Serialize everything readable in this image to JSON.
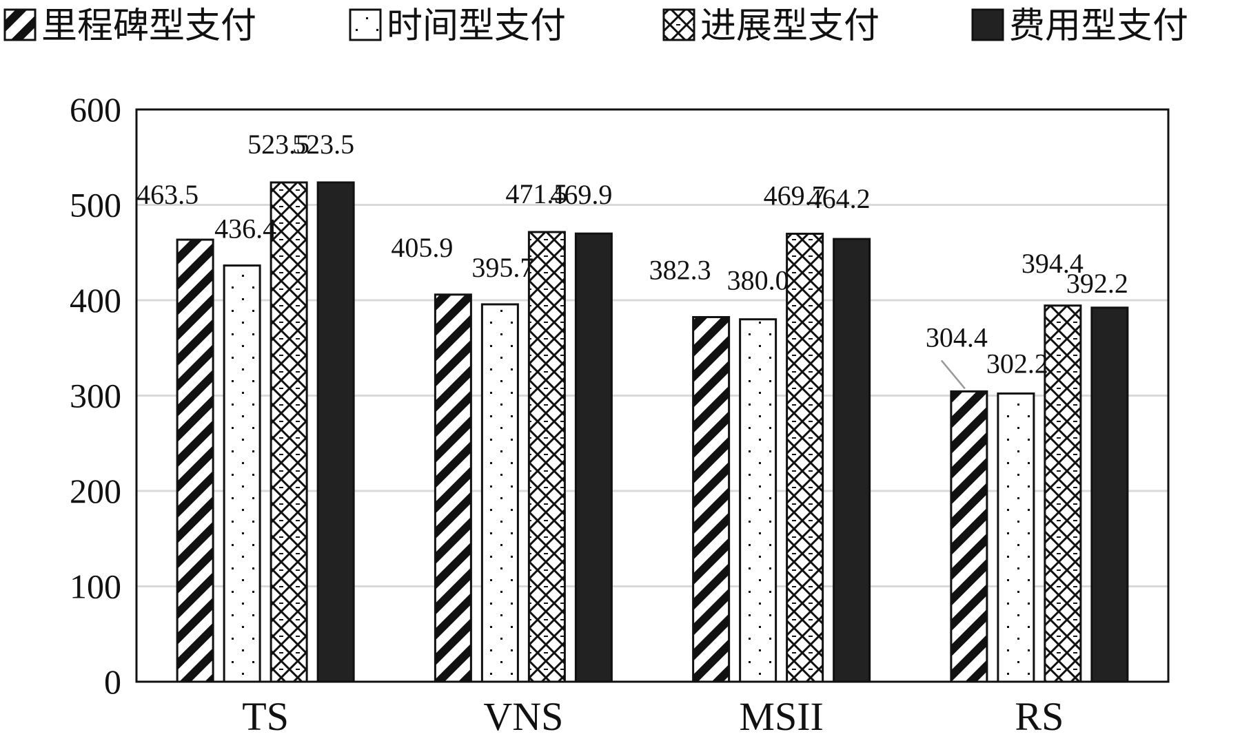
{
  "chart_data": {
    "type": "bar",
    "categories": [
      "TS",
      "VNS",
      "MSII",
      "RS"
    ],
    "series": [
      {
        "name": "里程碑型支付",
        "values": [
          463.5,
          405.9,
          382.3,
          304.4
        ],
        "pattern": "diagonal-stripes"
      },
      {
        "name": "时间型支付",
        "values": [
          436.4,
          395.7,
          380.0,
          302.2
        ],
        "pattern": "dots"
      },
      {
        "name": "进展型支付",
        "values": [
          523.5,
          471.5,
          469.7,
          394.4
        ],
        "pattern": "crosshatch"
      },
      {
        "name": "费用型支付",
        "values": [
          523.5,
          469.9,
          464.2,
          392.2
        ],
        "pattern": "solid"
      }
    ],
    "data_labels": [
      [
        "463.5",
        "405.9",
        "382.3",
        "304.4"
      ],
      [
        "436.4",
        "395.7",
        "380.0",
        "302.2"
      ],
      [
        "523.5",
        "471.5",
        "469.7",
        "394.4"
      ],
      [
        "523.5",
        "469.9",
        "464.2",
        "392.2"
      ]
    ],
    "yticks": [
      "0",
      "100",
      "200",
      "300",
      "400",
      "500",
      "600"
    ],
    "ylim": [
      0,
      600
    ],
    "xlabel": "",
    "ylabel": "",
    "title": "",
    "grid": true,
    "legend_position": "top",
    "colors": {
      "bar_outline": "#111111",
      "solid_fill": "#222222",
      "grid": "#d9d9d9",
      "frame": "#111111"
    }
  }
}
